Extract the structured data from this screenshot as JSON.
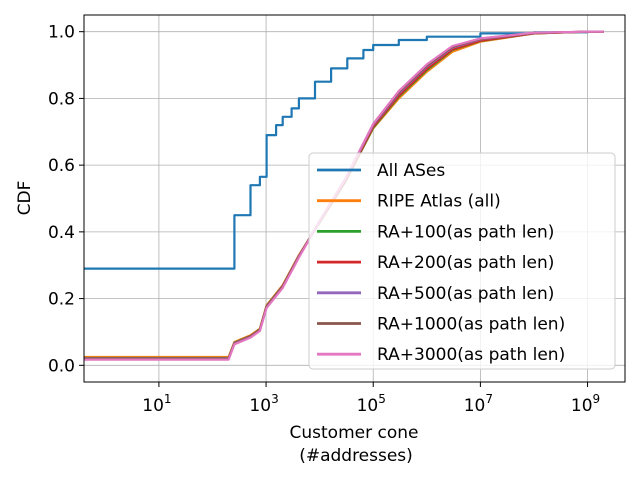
{
  "chart_data": {
    "type": "line",
    "x_scale": "log",
    "xlabel": [
      "Customer cone",
      "(#addresses)"
    ],
    "ylabel": "CDF",
    "xlim": [
      0.4,
      5000000000
    ],
    "ylim": [
      -0.05,
      1.05
    ],
    "grid": true,
    "legend_position": "center-right",
    "x_ticks": [
      {
        "value": 10,
        "base": "10",
        "exp": "1"
      },
      {
        "value": 1000,
        "base": "10",
        "exp": "3"
      },
      {
        "value": 100000,
        "base": "10",
        "exp": "5"
      },
      {
        "value": 10000000,
        "base": "10",
        "exp": "7"
      },
      {
        "value": 1000000000,
        "base": "10",
        "exp": "9"
      }
    ],
    "y_ticks": [
      {
        "value": 0.0,
        "label": "0.0"
      },
      {
        "value": 0.2,
        "label": "0.2"
      },
      {
        "value": 0.4,
        "label": "0.4"
      },
      {
        "value": 0.6,
        "label": "0.6"
      },
      {
        "value": 0.8,
        "label": "0.8"
      },
      {
        "value": 1.0,
        "label": "1.0"
      }
    ],
    "series": [
      {
        "name": "All ASes",
        "color": "#1f77b4",
        "step": true,
        "x": [
          0.4,
          256,
          512,
          768,
          1024,
          1536,
          2048,
          3000,
          4096,
          8192,
          16384,
          32768,
          65536,
          100000,
          300000,
          1000000,
          10000000,
          100000000,
          1000000000,
          2000000000
        ],
        "y": [
          0.29,
          0.45,
          0.54,
          0.565,
          0.69,
          0.72,
          0.745,
          0.77,
          0.8,
          0.85,
          0.89,
          0.92,
          0.945,
          0.96,
          0.975,
          0.985,
          0.995,
          0.998,
          1.0,
          1.0
        ]
      },
      {
        "name": "RIPE Atlas (all)",
        "color": "#ff7f0e",
        "step": false,
        "x": [
          0.4,
          200,
          256,
          512,
          768,
          1024,
          2048,
          4096,
          10000,
          30000,
          100000,
          300000,
          1000000,
          3000000,
          10000000,
          100000000,
          1000000000,
          2000000000
        ],
        "y": [
          0.025,
          0.025,
          0.07,
          0.09,
          0.11,
          0.18,
          0.24,
          0.33,
          0.43,
          0.55,
          0.71,
          0.8,
          0.88,
          0.94,
          0.97,
          0.995,
          1.0,
          1.0
        ]
      },
      {
        "name": "RA+100(as path len)",
        "color": "#2ca02c",
        "step": false,
        "x": [
          0.4,
          200,
          256,
          512,
          768,
          1024,
          2048,
          4096,
          10000,
          30000,
          100000,
          300000,
          1000000,
          3000000,
          10000000,
          100000000,
          1000000000,
          2000000000
        ],
        "y": [
          0.022,
          0.022,
          0.068,
          0.088,
          0.108,
          0.178,
          0.238,
          0.328,
          0.428,
          0.55,
          0.712,
          0.805,
          0.885,
          0.945,
          0.972,
          0.995,
          1.0,
          1.0
        ]
      },
      {
        "name": "RA+200(as path len)",
        "color": "#d62728",
        "step": false,
        "x": [
          0.4,
          200,
          256,
          512,
          768,
          1024,
          2048,
          4096,
          10000,
          30000,
          100000,
          300000,
          1000000,
          3000000,
          10000000,
          100000000,
          1000000000,
          2000000000
        ],
        "y": [
          0.021,
          0.021,
          0.067,
          0.087,
          0.107,
          0.177,
          0.237,
          0.328,
          0.43,
          0.552,
          0.715,
          0.808,
          0.888,
          0.947,
          0.973,
          0.995,
          1.0,
          1.0
        ]
      },
      {
        "name": "RA+500(as path len)",
        "color": "#9467bd",
        "step": false,
        "x": [
          0.4,
          200,
          256,
          512,
          768,
          1024,
          2048,
          4096,
          10000,
          30000,
          100000,
          300000,
          1000000,
          3000000,
          10000000,
          100000000,
          1000000000,
          2000000000
        ],
        "y": [
          0.02,
          0.02,
          0.066,
          0.086,
          0.106,
          0.176,
          0.236,
          0.327,
          0.432,
          0.556,
          0.72,
          0.815,
          0.895,
          0.952,
          0.977,
          0.996,
          1.0,
          1.0
        ]
      },
      {
        "name": "RA+1000(as path len)",
        "color": "#8c564b",
        "step": false,
        "x": [
          0.4,
          200,
          256,
          512,
          768,
          1024,
          2048,
          4096,
          10000,
          30000,
          100000,
          300000,
          1000000,
          3000000,
          10000000,
          100000000,
          1000000000,
          2000000000
        ],
        "y": [
          0.019,
          0.019,
          0.065,
          0.085,
          0.105,
          0.175,
          0.235,
          0.326,
          0.433,
          0.558,
          0.722,
          0.818,
          0.898,
          0.954,
          0.978,
          0.996,
          1.0,
          1.0
        ]
      },
      {
        "name": "RA+3000(as path len)",
        "color": "#e377c2",
        "step": false,
        "x": [
          0.4,
          200,
          256,
          512,
          768,
          1024,
          2048,
          4096,
          10000,
          30000,
          100000,
          300000,
          1000000,
          3000000,
          10000000,
          100000000,
          1000000000,
          2000000000
        ],
        "y": [
          0.017,
          0.017,
          0.063,
          0.083,
          0.103,
          0.172,
          0.232,
          0.323,
          0.432,
          0.558,
          0.724,
          0.822,
          0.902,
          0.957,
          0.98,
          0.997,
          1.0,
          1.0
        ]
      }
    ]
  }
}
